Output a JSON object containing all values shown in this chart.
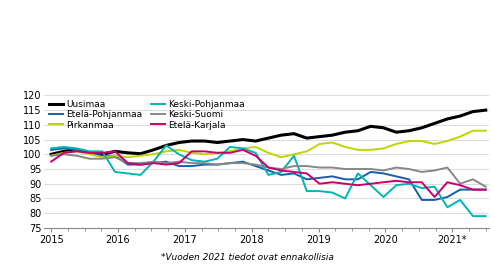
{
  "footnote": "*Vuoden 2021 tiedot ovat ennakollisia",
  "ylim": [
    75,
    120
  ],
  "yticks": [
    75,
    80,
    85,
    90,
    95,
    100,
    105,
    110,
    115,
    120
  ],
  "xtick_major": [
    2015,
    2016,
    2017,
    2018,
    2019,
    2020,
    2021
  ],
  "xtick_labels": [
    "2015",
    "2016",
    "2017",
    "2018",
    "2019",
    "2020",
    "2021*"
  ],
  "xlim": [
    2014.9,
    2021.55
  ],
  "series": {
    "Uusimaa": {
      "color": "#000000",
      "linewidth": 2.2,
      "values": [
        100.0,
        101.0,
        101.5,
        100.5,
        100.0,
        101.0,
        100.5,
        100.2,
        101.5,
        103.0,
        104.0,
        104.5,
        104.5,
        104.0,
        104.5,
        105.0,
        104.5,
        105.5,
        106.5,
        107.0,
        105.5,
        106.0,
        106.5,
        107.5,
        108.0,
        109.5,
        109.0,
        107.5,
        108.0,
        109.0,
        110.5,
        112.0,
        113.0,
        114.5,
        115.0
      ]
    },
    "Pirkanmaa": {
      "color": "#bed600",
      "linewidth": 1.4,
      "values": [
        99.5,
        100.5,
        101.0,
        100.0,
        99.0,
        99.5,
        99.0,
        99.5,
        100.0,
        101.0,
        101.5,
        100.5,
        100.0,
        100.5,
        101.0,
        102.0,
        102.5,
        100.5,
        99.0,
        100.0,
        101.0,
        103.5,
        104.0,
        102.5,
        101.5,
        101.5,
        102.0,
        103.5,
        104.5,
        104.5,
        103.5,
        104.5,
        106.0,
        108.0,
        108.0
      ]
    },
    "Keski-Suomi": {
      "color": "#888888",
      "linewidth": 1.4,
      "values": [
        99.5,
        100.0,
        99.5,
        98.5,
        98.5,
        99.0,
        97.0,
        97.0,
        97.5,
        97.0,
        97.5,
        97.0,
        97.0,
        96.5,
        97.0,
        97.0,
        96.5,
        95.5,
        95.0,
        96.0,
        96.0,
        95.5,
        95.5,
        95.0,
        95.0,
        95.0,
        94.5,
        95.5,
        95.0,
        94.0,
        94.5,
        95.5,
        90.0,
        91.5,
        89.0
      ]
    },
    "Etelä-Pohjanmaa": {
      "color": "#1460aa",
      "linewidth": 1.4,
      "values": [
        101.5,
        102.0,
        101.5,
        100.5,
        99.5,
        99.5,
        96.5,
        96.5,
        97.0,
        97.5,
        96.0,
        96.0,
        96.5,
        96.5,
        97.0,
        97.5,
        96.0,
        94.5,
        93.0,
        93.5,
        91.5,
        92.0,
        92.5,
        91.5,
        91.5,
        94.0,
        93.5,
        92.5,
        91.5,
        84.5,
        84.5,
        85.5,
        88.0,
        88.0,
        88.0
      ]
    },
    "Keski-Pohjanmaa": {
      "color": "#00b5b5",
      "linewidth": 1.4,
      "values": [
        102.0,
        102.5,
        102.0,
        101.0,
        101.0,
        94.0,
        93.5,
        93.0,
        97.5,
        103.0,
        100.0,
        98.0,
        97.5,
        98.5,
        102.5,
        102.0,
        100.5,
        93.0,
        94.0,
        99.5,
        87.5,
        87.5,
        87.0,
        85.0,
        93.5,
        89.5,
        85.5,
        89.5,
        90.0,
        88.5,
        89.0,
        82.0,
        84.5,
        79.0,
        79.0
      ]
    },
    "Etelä-Karjala": {
      "color": "#c8006e",
      "linewidth": 1.4,
      "values": [
        97.5,
        100.5,
        101.0,
        100.5,
        100.5,
        101.0,
        97.0,
        96.5,
        97.0,
        96.5,
        97.0,
        101.0,
        101.0,
        100.5,
        100.5,
        101.5,
        99.5,
        95.5,
        94.5,
        94.0,
        93.5,
        90.0,
        90.5,
        90.0,
        89.5,
        90.0,
        90.5,
        91.0,
        90.5,
        90.5,
        85.5,
        90.5,
        89.5,
        88.0,
        88.0
      ]
    }
  },
  "legend_order": [
    "Uusimaa",
    "Etelä-Pohjanmaa",
    "Pirkanmaa",
    "Keski-Pohjanmaa",
    "Keski-Suomi",
    "Etelä-Karjala"
  ],
  "background_color": "#ffffff"
}
